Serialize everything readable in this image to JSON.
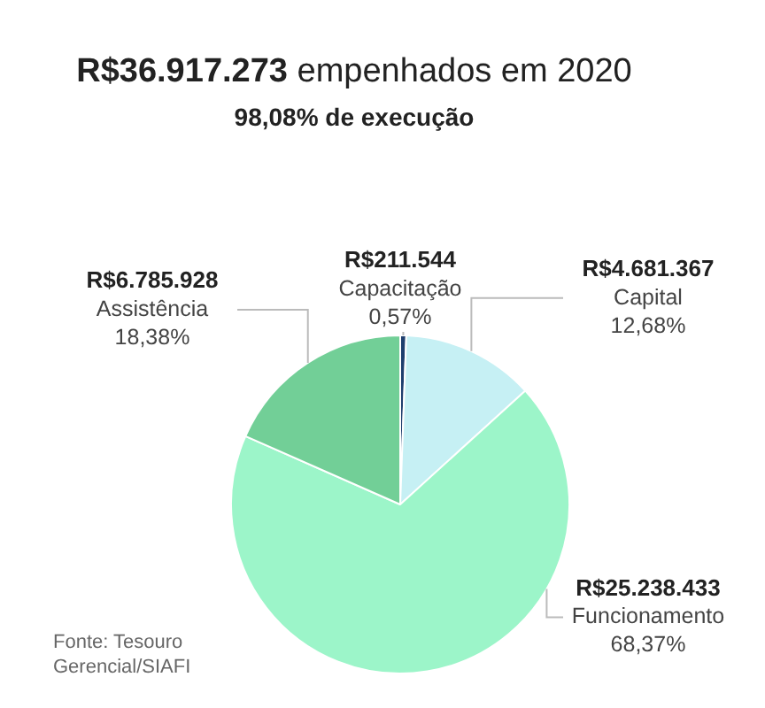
{
  "chart_data": {
    "type": "pie",
    "title": "R$36.917.273 empenhados em 2020",
    "subtitle": "98,08% de execução",
    "categories": [
      "Capacitação",
      "Capital",
      "Funcionamento",
      "Assistência"
    ],
    "values": [
      211544,
      4681367,
      25238433,
      6785928
    ],
    "value_labels": [
      "R$211.544",
      "R$4.681.367",
      "R$25.238.433",
      "R$6.785.928"
    ],
    "colors": [
      "#1f3f6e",
      "#c6f0f4",
      "#9cf5c9",
      "#72cf97"
    ],
    "legend": false,
    "annotations": [
      {
        "text": "0,57%",
        "x": "Capacitação"
      },
      {
        "text": "12,68%",
        "x": "Capital"
      },
      {
        "text": "68,37%",
        "x": "Funcionamento"
      },
      {
        "text": "18,38%",
        "x": "Assistência"
      },
      "Fonte: Tesouro Gerencial/SIAFI"
    ]
  }
}
